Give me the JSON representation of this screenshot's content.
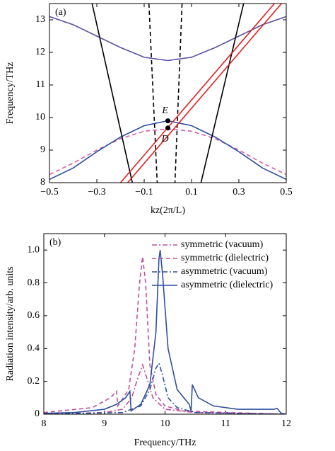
{
  "chart_data": [
    {
      "type": "line",
      "annotation": "(a)",
      "x_label": "kz(2π/L)",
      "y_label": "Frequency/THz",
      "xlim": [
        -0.5,
        0.5
      ],
      "ylim": [
        8,
        13.5
      ],
      "xticks": [
        {
          "value": -0.5,
          "label": "−0.5"
        },
        {
          "value": -0.3,
          "label": "−0.3"
        },
        {
          "value": -0.1,
          "label": "−0.1"
        },
        0.1,
        0.3,
        0.5
      ],
      "yticks": [
        8,
        9,
        10,
        11,
        12,
        13
      ],
      "series": [
        {
          "color": "#d85fa8",
          "linestyle": "dashed",
          "x": [
            -0.5,
            -0.4,
            -0.3,
            -0.2,
            -0.1,
            0,
            0.1,
            0.2,
            0.3,
            0.4,
            0.5
          ],
          "values": [
            13.1,
            12.85,
            12.5,
            12.15,
            11.85,
            11.75,
            11.85,
            12.15,
            12.5,
            12.85,
            13.1
          ]
        },
        {
          "color": "#5a5aa8",
          "linestyle": "solid",
          "x": [
            -0.5,
            -0.4,
            -0.3,
            -0.2,
            -0.1,
            0,
            0.1,
            0.2,
            0.3,
            0.4,
            0.5
          ],
          "values": [
            13.1,
            12.85,
            12.5,
            12.15,
            11.85,
            11.75,
            11.85,
            12.15,
            12.5,
            12.85,
            13.1
          ]
        },
        {
          "color": "#d85fa8",
          "linestyle": "dashed",
          "x": [
            -0.5,
            -0.4,
            -0.3,
            -0.2,
            -0.1,
            0,
            0.1,
            0.2,
            0.3,
            0.4,
            0.5
          ],
          "values": [
            8.25,
            8.6,
            9.0,
            9.35,
            9.58,
            9.65,
            9.58,
            9.35,
            9.0,
            8.6,
            8.25
          ]
        },
        {
          "color": "#2f4f9f",
          "linestyle": "solid",
          "x": [
            -0.5,
            -0.4,
            -0.3,
            -0.2,
            -0.1,
            0,
            0.1,
            0.2,
            0.3,
            0.4,
            0.5
          ],
          "values": [
            8.1,
            8.45,
            8.95,
            9.4,
            9.75,
            9.9,
            9.75,
            9.4,
            8.95,
            8.45,
            8.1
          ]
        },
        {
          "color": "#000000",
          "linestyle": "solid",
          "x": [
            -0.32,
            -0.15
          ],
          "values": [
            13.5,
            8
          ]
        },
        {
          "color": "#000000",
          "linestyle": "solid",
          "x": [
            0.32,
            0.14
          ],
          "values": [
            13.5,
            8
          ]
        },
        {
          "color": "#000000",
          "linestyle": "dashed",
          "x": [
            -0.08,
            -0.045
          ],
          "values": [
            13.5,
            8
          ]
        },
        {
          "color": "#000000",
          "linestyle": "dashed",
          "x": [
            0.06,
            0.03
          ],
          "values": [
            13.5,
            8
          ]
        },
        {
          "color": "#e02020",
          "linestyle": "solid",
          "x": [
            -0.2,
            0.45
          ],
          "values": [
            8,
            13.5
          ]
        },
        {
          "color": "#e02020",
          "linestyle": "solid",
          "x": [
            -0.17,
            0.48
          ],
          "values": [
            8,
            13.5
          ]
        }
      ],
      "points": [
        {
          "label": "E",
          "x": 0,
          "y": 9.9
        },
        {
          "label": "D",
          "x": 0,
          "y": 9.68
        }
      ]
    },
    {
      "type": "line",
      "annotation": "(b)",
      "x_label": "Frequency/THz",
      "y_label": "Radiation intensity/arb. units",
      "xlim": [
        8,
        12
      ],
      "ylim": [
        0,
        1.1
      ],
      "xticks": [
        8,
        9,
        10,
        11,
        12
      ],
      "yticks": [
        0,
        0.2,
        0.4,
        0.6,
        0.8,
        {
          "value": 1,
          "label": "1.0"
        }
      ],
      "legend": "upper right",
      "series": [
        {
          "name": "symmetric (vacuum)",
          "color": "#c0509a",
          "linestyle": "dashdot",
          "x": [
            8,
            9,
            9.3,
            9.45,
            9.55,
            9.63,
            9.7,
            9.8,
            10,
            10.5,
            12
          ],
          "values": [
            0,
            0.01,
            0.03,
            0.1,
            0.22,
            0.3,
            0.22,
            0.1,
            0.03,
            0.01,
            0
          ]
        },
        {
          "name": "symmetric (dielectric)",
          "color": "#c0509a",
          "linestyle": "dashed",
          "x": [
            8,
            8.8,
            9.1,
            9.2,
            9.22,
            9.4,
            9.5,
            9.58,
            9.63,
            9.68,
            9.75,
            9.85,
            10,
            10.3,
            11,
            12
          ],
          "values": [
            0.01,
            0.04,
            0.1,
            0.14,
            0.05,
            0.15,
            0.4,
            0.8,
            0.96,
            0.8,
            0.3,
            0.12,
            0.05,
            0.02,
            0.01,
            0
          ]
        },
        {
          "name": "asymmetric (vacuum)",
          "color": "#2f4f9f",
          "linestyle": "dashdot",
          "x": [
            8,
            9.3,
            9.6,
            9.75,
            9.85,
            9.9,
            9.95,
            10.05,
            10.2,
            10.5,
            12
          ],
          "values": [
            0,
            0.01,
            0.05,
            0.15,
            0.28,
            0.31,
            0.25,
            0.1,
            0.04,
            0.01,
            0
          ]
        },
        {
          "name": "asymmetric (dielectric)",
          "color": "#2f4f9f",
          "linestyle": "solid",
          "x": [
            8,
            8.5,
            9,
            9.2,
            9.35,
            9.42,
            9.44,
            9.6,
            9.75,
            9.85,
            9.9,
            9.92,
            9.96,
            10.05,
            10.2,
            10.4,
            10.43,
            10.45,
            10.55,
            10.8,
            11.2,
            11.8,
            11.85,
            11.92,
            12
          ],
          "values": [
            0.005,
            0.01,
            0.03,
            0.06,
            0.1,
            0.14,
            0.02,
            0.06,
            0.18,
            0.5,
            0.95,
            1.0,
            0.85,
            0.4,
            0.15,
            0.06,
            0.02,
            0.18,
            0.1,
            0.05,
            0.03,
            0.03,
            0.035,
            0.005,
            0
          ]
        }
      ]
    }
  ]
}
